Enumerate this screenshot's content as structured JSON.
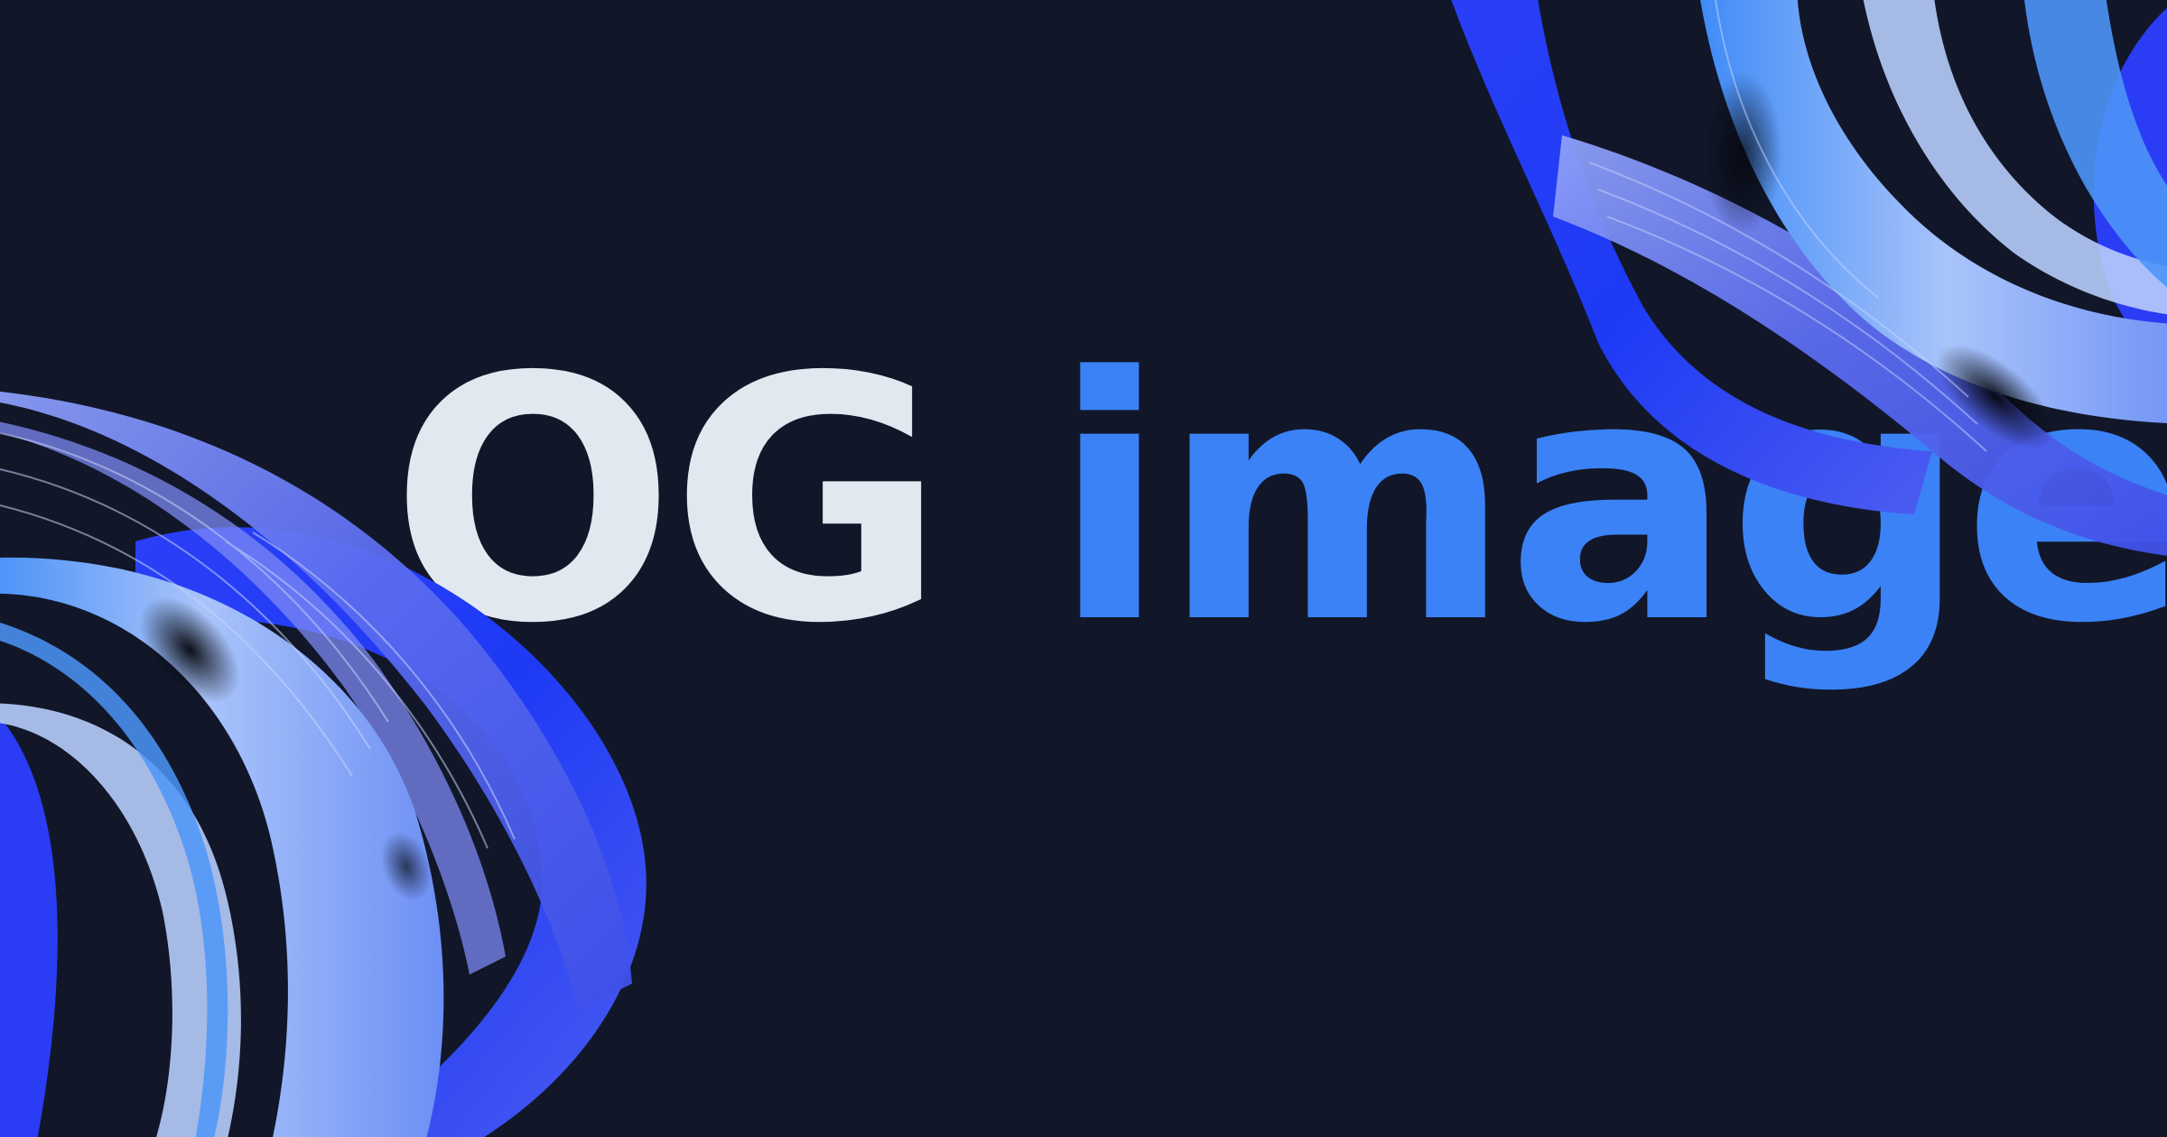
{
  "headline": {
    "word_1": "OG",
    "word_2": "image"
  },
  "colors": {
    "background": "#111729",
    "word_1": "#E2E8F0",
    "word_2": "#3B82F6",
    "ribbon_deep": "#1E3AF5",
    "ribbon_mid": "#5B6CF0",
    "ribbon_light": "#A9C4FA"
  },
  "icons": [
    "ribbon-swirl-bottom-left-icon",
    "ribbon-swirl-top-right-icon"
  ]
}
